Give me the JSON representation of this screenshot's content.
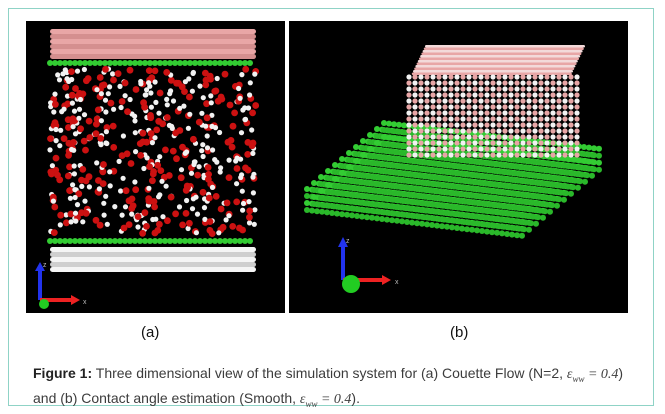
{
  "figure": {
    "panel_a_label": "(a)",
    "panel_b_label": "(b)",
    "caption_label": "Figure 1:",
    "caption_part1": "Three dimensional view of the simulation system for (a) Couette Flow (N=2, ",
    "caption_part2": ") and (b) Contact angle estimation (Smooth, ",
    "caption_part3": ").",
    "epsilon_symbol": "ε",
    "epsilon_subscript": "ww",
    "epsilon_value": " = 0.4"
  },
  "axes": {
    "z_label": "z",
    "x_label": "x"
  },
  "colors": {
    "background": "#000000",
    "wall_pink": "#e8a6a6",
    "wall_green": "#33cc33",
    "oxygen_red": "#cc1111",
    "hydrogen_white": "#f2f2f2",
    "axis_z_blue": "#2233ee",
    "axis_x_red": "#ee2222",
    "axis_y_green": "#22cc22"
  }
}
